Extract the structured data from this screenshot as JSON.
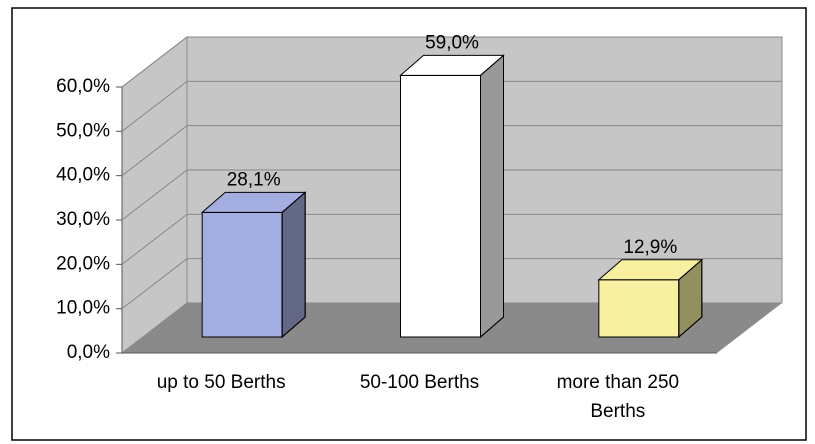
{
  "chart_data": {
    "type": "bar3d",
    "categories": [
      "up to 50 Berths",
      "50-100 Berths",
      "more than 250 Berths"
    ],
    "values": [
      28.1,
      59.0,
      12.9
    ],
    "value_labels": [
      "28,1%",
      "59,0%",
      "12,9%"
    ],
    "colors": [
      "#a3ade0",
      "#ffffff",
      "#f6f0a0"
    ],
    "ylim": [
      0,
      60
    ],
    "yticks": [
      {
        "value": 0,
        "label": "0,0%"
      },
      {
        "value": 10,
        "label": "10,0%"
      },
      {
        "value": 20,
        "label": "20,0%"
      },
      {
        "value": 30,
        "label": "30,0%"
      },
      {
        "value": 40,
        "label": "40,0%"
      },
      {
        "value": 50,
        "label": "50,0%"
      },
      {
        "value": 60,
        "label": "60,0%"
      }
    ],
    "grid": true
  }
}
